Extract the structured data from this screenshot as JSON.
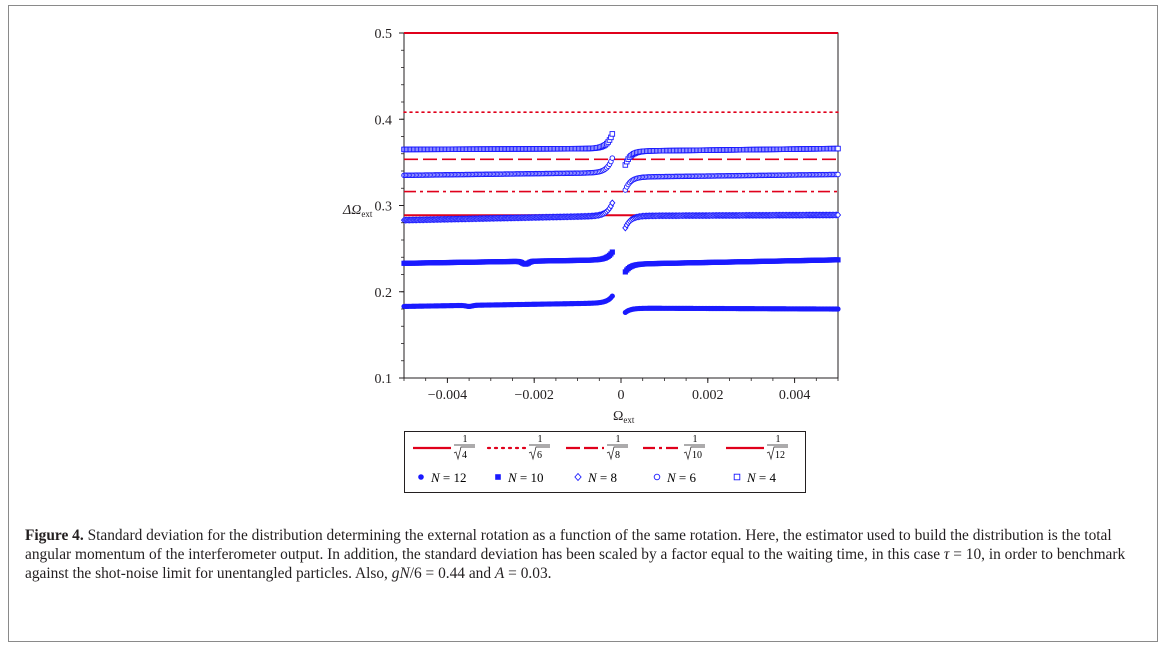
{
  "chart_data": {
    "type": "scatter",
    "xlabel": "Ω",
    "xlabel_sub": "ext",
    "ylabel": "ΔΩ",
    "ylabel_sub": "ext",
    "xlim": [
      -0.005,
      0.005
    ],
    "ylim": [
      0.1,
      0.5
    ],
    "x_ticks": [
      -0.004,
      -0.002,
      0,
      0.002,
      0.004
    ],
    "x_tick_labels": [
      "−0.004",
      "−0.002",
      "0",
      "0.002",
      "0.004"
    ],
    "y_ticks": [
      0.1,
      0.2,
      0.3,
      0.4,
      0.5
    ],
    "y_tick_labels": [
      "0.1",
      "0.2",
      "0.3",
      "0.4",
      "0.5"
    ],
    "grid": false,
    "legend_position": "bottom",
    "reference_lines": [
      {
        "value": 0.5,
        "style": "solid",
        "color": "#e0001b",
        "label_num": "1",
        "label_den": "4"
      },
      {
        "value": 0.4082,
        "style": "dotted",
        "color": "#e0001b",
        "label_num": "1",
        "label_den": "6"
      },
      {
        "value": 0.3536,
        "style": "dashed",
        "color": "#e0001b",
        "label_num": "1",
        "label_den": "8"
      },
      {
        "value": 0.3162,
        "style": "dashdot",
        "color": "#e0001b",
        "label_num": "1",
        "label_den": "10"
      },
      {
        "value": 0.2887,
        "style": "solid",
        "color": "#e0001b",
        "label_num": "1",
        "label_den": "12"
      }
    ],
    "series": [
      {
        "name": "N = 12",
        "marker": "filled-circle",
        "color": "#1a1aff",
        "left": {
          "x_start": -0.005,
          "x_end": -0.0002,
          "y_start": 0.183,
          "y_end": 0.187,
          "y_near_zero": 0.195,
          "dip_x": -0.0035,
          "dip": 0.183
        },
        "right": {
          "x_start": 0.0001,
          "x_end": 0.005,
          "y_start": 0.176,
          "y_end": 0.18,
          "y_plateau": 0.181
        }
      },
      {
        "name": "N = 10",
        "marker": "filled-square",
        "color": "#1a1aff",
        "left": {
          "x_start": -0.005,
          "x_end": -0.0002,
          "y_start": 0.233,
          "y_end": 0.237,
          "y_near_zero": 0.246,
          "dip_x": -0.0022,
          "dip": 0.232
        },
        "right": {
          "x_start": 0.0001,
          "x_end": 0.005,
          "y_start": 0.223,
          "y_end": 0.237,
          "y_plateau": 0.232
        }
      },
      {
        "name": "N = 8",
        "marker": "open-diamond",
        "color": "#1a1aff",
        "left": {
          "x_start": -0.005,
          "x_end": -0.0002,
          "y_start": 0.283,
          "y_end": 0.288,
          "y_near_zero": 0.303
        },
        "right": {
          "x_start": 0.0001,
          "x_end": 0.005,
          "y_start": 0.274,
          "y_end": 0.289,
          "y_plateau": 0.288
        }
      },
      {
        "name": "N = 6",
        "marker": "open-circle",
        "color": "#1a1aff",
        "left": {
          "x_start": -0.005,
          "x_end": -0.0002,
          "y_start": 0.335,
          "y_end": 0.338,
          "y_near_zero": 0.355
        },
        "right": {
          "x_start": 0.0001,
          "x_end": 0.005,
          "y_start": 0.318,
          "y_end": 0.336,
          "y_plateau": 0.333
        }
      },
      {
        "name": "N = 4",
        "marker": "open-square",
        "color": "#1a1aff",
        "left": {
          "x_start": -0.005,
          "x_end": -0.0002,
          "y_start": 0.365,
          "y_end": 0.366,
          "y_near_zero": 0.383
        },
        "right": {
          "x_start": 0.0001,
          "x_end": 0.005,
          "y_start": 0.347,
          "y_end": 0.366,
          "y_plateau": 0.363
        }
      }
    ]
  },
  "legend": {
    "lines": [
      {
        "num": "1",
        "den": "4"
      },
      {
        "num": "1",
        "den": "6"
      },
      {
        "num": "1",
        "den": "8"
      },
      {
        "num": "1",
        "den": "10"
      },
      {
        "num": "1",
        "den": "12"
      }
    ],
    "markers": [
      {
        "var": "N",
        "rest": " = 12"
      },
      {
        "var": "N",
        "rest": " = 10"
      },
      {
        "var": "N",
        "rest": " = 8"
      },
      {
        "var": "N",
        "rest": " = 6"
      },
      {
        "var": "N",
        "rest": " = 4"
      }
    ]
  },
  "caption": {
    "label": "Figure 4.",
    "text_1": " Standard deviation for the distribution determining the external rotation as a function of the same rotation. Here, the estimator used to build the distribution is the total angular momentum of the interferometer output. In addition, the standard deviation has been scaled by a factor equal to the waiting time, in this case ",
    "tau": "τ",
    "text_2": " = 10, in order to benchmark against the shot-noise limit for unentangled particles. Also, ",
    "gn": "gN",
    "text_3": "/6 = 0.44 and ",
    "a": "A",
    "text_4": " = 0.03."
  }
}
